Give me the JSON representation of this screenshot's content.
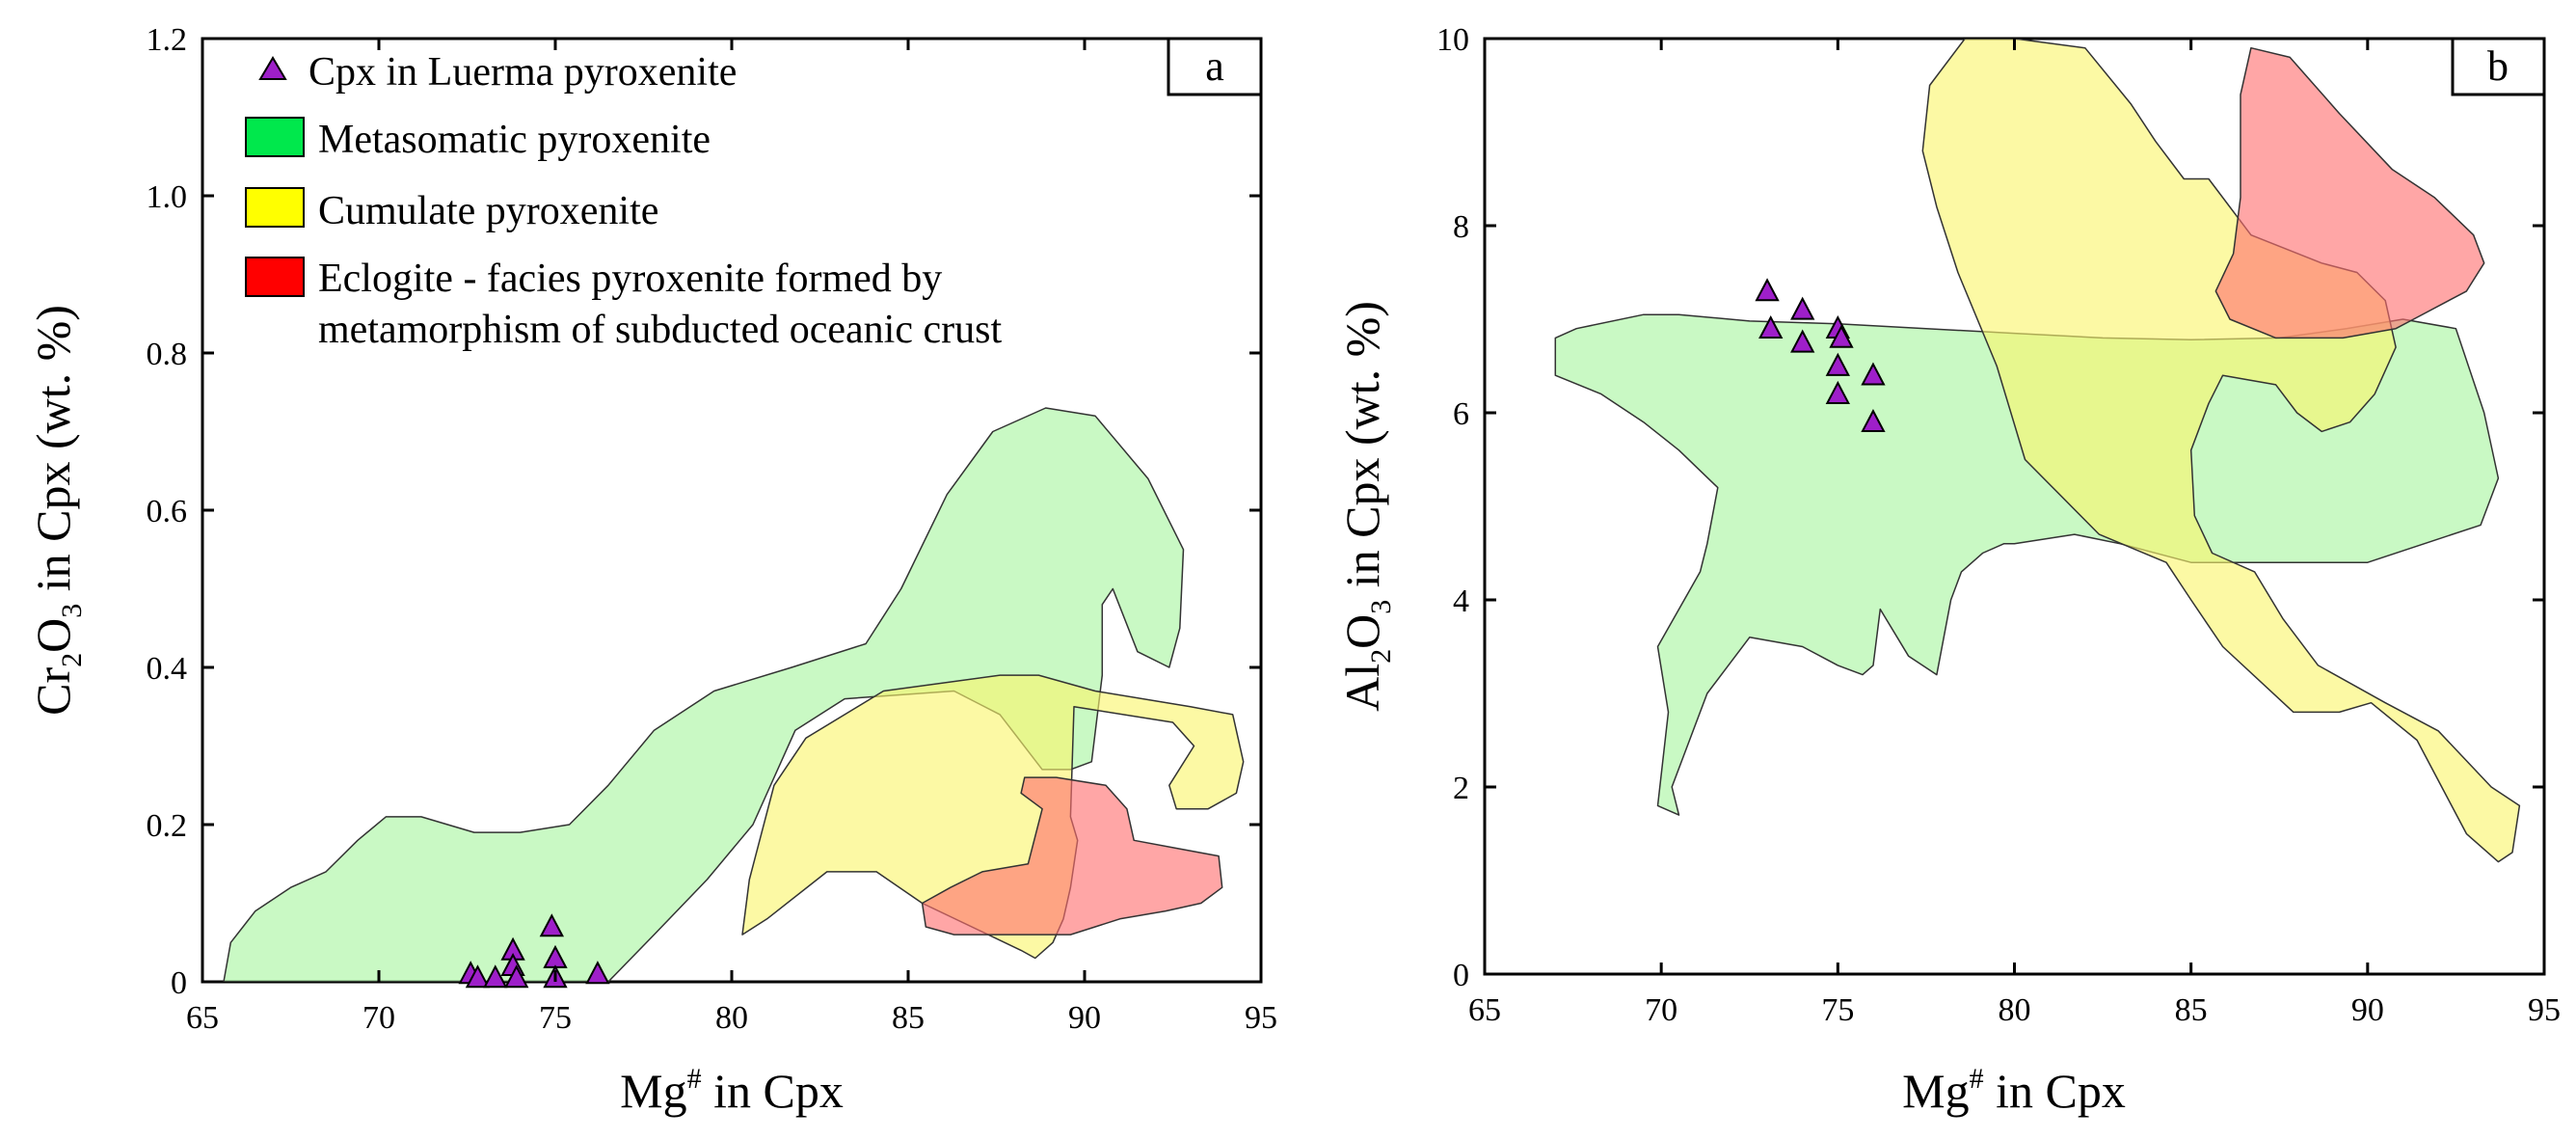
{
  "chart_data": [
    {
      "panel": "a",
      "type": "scatter",
      "xlabel": "Mg# in Cpx",
      "xlabel_parts": [
        "Mg",
        "#",
        " in Cpx"
      ],
      "ylabel": "Cr2O3 in Cpx (wt. %)",
      "ylabel_parts": [
        "Cr",
        "2",
        "O",
        "3",
        " in Cpx (wt. %)"
      ],
      "xlim": [
        65,
        95
      ],
      "ylim": [
        0,
        1.2
      ],
      "x_ticks": [
        65,
        70,
        75,
        80,
        85,
        90,
        95
      ],
      "y_ticks": [
        0,
        0.2,
        0.4,
        0.6,
        0.8,
        1.0,
        1.2
      ],
      "y_tick_labels": [
        "0",
        "0.2",
        "0.4",
        "0.6",
        "0.8",
        "1.0",
        "1.2"
      ],
      "legend_position": "top-left",
      "legend": [
        {
          "key": "cpx",
          "marker": "triangle",
          "lines": [
            "Cpx in Luerma pyroxenite"
          ]
        },
        {
          "key": "metasomatic",
          "marker": "box",
          "lines": [
            "Metasomatic pyroxenite"
          ]
        },
        {
          "key": "cumulate",
          "marker": "box",
          "lines": [
            "Cumulate pyroxenite"
          ]
        },
        {
          "key": "eclogite",
          "marker": "box",
          "lines": [
            "Eclogite - facies pyroxenite formed by",
            "metamorphism of subducted oceanic crust"
          ]
        }
      ],
      "fields": [
        {
          "name": "Metasomatic pyroxenite",
          "polygon": [
            [
              65.6,
              0
            ],
            [
              65.8,
              0.05
            ],
            [
              66.5,
              0.09
            ],
            [
              67.5,
              0.12
            ],
            [
              68.5,
              0.14
            ],
            [
              69.4,
              0.18
            ],
            [
              70.2,
              0.21
            ],
            [
              71.2,
              0.21
            ],
            [
              72.7,
              0.19
            ],
            [
              74,
              0.19
            ],
            [
              75.4,
              0.2
            ],
            [
              76.5,
              0.25
            ],
            [
              77.8,
              0.32
            ],
            [
              79.5,
              0.37
            ],
            [
              81.7,
              0.4
            ],
            [
              83.8,
              0.43
            ],
            [
              84.8,
              0.5
            ],
            [
              86.1,
              0.62
            ],
            [
              87.4,
              0.7
            ],
            [
              88.9,
              0.73
            ],
            [
              90.3,
              0.72
            ],
            [
              91.8,
              0.64
            ],
            [
              92.8,
              0.55
            ],
            [
              92.7,
              0.45
            ],
            [
              92.4,
              0.4
            ],
            [
              91.5,
              0.42
            ],
            [
              90.8,
              0.5
            ],
            [
              90.5,
              0.48
            ],
            [
              90.5,
              0.39
            ],
            [
              90.2,
              0.28
            ],
            [
              89.6,
              0.27
            ],
            [
              88.8,
              0.27
            ],
            [
              87.6,
              0.34
            ],
            [
              86.3,
              0.37
            ],
            [
              83.2,
              0.36
            ],
            [
              81.8,
              0.32
            ],
            [
              80.6,
              0.2
            ],
            [
              79.3,
              0.13
            ],
            [
              77.8,
              0.06
            ],
            [
              76.5,
              0
            ]
          ]
        },
        {
          "name": "Cumulate pyroxenite",
          "polygon": [
            [
              80.5,
              0.13
            ],
            [
              81.2,
              0.25
            ],
            [
              82.1,
              0.31
            ],
            [
              84.3,
              0.37
            ],
            [
              87.6,
              0.39
            ],
            [
              88.7,
              0.39
            ],
            [
              90.3,
              0.37
            ],
            [
              93,
              0.35
            ],
            [
              94.2,
              0.34
            ],
            [
              94.5,
              0.28
            ],
            [
              94.3,
              0.24
            ],
            [
              93.5,
              0.22
            ],
            [
              92.6,
              0.22
            ],
            [
              92.4,
              0.25
            ],
            [
              93.1,
              0.3
            ],
            [
              92.5,
              0.33
            ],
            [
              89.7,
              0.35
            ],
            [
              89.6,
              0.21
            ],
            [
              89.8,
              0.18
            ],
            [
              89.6,
              0.12
            ],
            [
              89.4,
              0.08
            ],
            [
              89.1,
              0.05
            ],
            [
              88.6,
              0.03
            ],
            [
              88.2,
              0.04
            ],
            [
              85.4,
              0.1
            ],
            [
              84.1,
              0.14
            ],
            [
              82.7,
              0.14
            ],
            [
              81,
              0.08
            ],
            [
              80.3,
              0.06
            ]
          ]
        },
        {
          "name": "Eclogite - facies pyroxenite formed by metamorphism of subducted oceanic crust",
          "polygon": [
            [
              85.4,
              0.1
            ],
            [
              86.2,
              0.12
            ],
            [
              87.1,
              0.14
            ],
            [
              88.4,
              0.15
            ],
            [
              88.8,
              0.22
            ],
            [
              88.2,
              0.24
            ],
            [
              88.3,
              0.26
            ],
            [
              89.2,
              0.26
            ],
            [
              90.6,
              0.25
            ],
            [
              91.2,
              0.22
            ],
            [
              91.4,
              0.18
            ],
            [
              92.6,
              0.17
            ],
            [
              93.8,
              0.16
            ],
            [
              93.9,
              0.12
            ],
            [
              93.3,
              0.1
            ],
            [
              92.3,
              0.09
            ],
            [
              91,
              0.08
            ],
            [
              90.3,
              0.07
            ],
            [
              89.6,
              0.06
            ],
            [
              88.7,
              0.06
            ],
            [
              87.2,
              0.06
            ],
            [
              86.3,
              0.06
            ],
            [
              85.5,
              0.07
            ]
          ]
        }
      ],
      "points": {
        "name": "Cpx in Luerma pyroxenite",
        "x": [
          72.6,
          72.8,
          73.3,
          73.8,
          73.8,
          73.9,
          74.9,
          75,
          75,
          76.2
        ],
        "y": [
          0.01,
          0.005,
          0.005,
          0.04,
          0.02,
          0.005,
          0.07,
          0.03,
          0.005,
          0.01
        ]
      }
    },
    {
      "panel": "b",
      "type": "scatter",
      "xlabel": "Mg# in Cpx",
      "xlabel_parts": [
        "Mg",
        "#",
        " in Cpx"
      ],
      "ylabel": "Al2O3 in Cpx (wt. %)",
      "ylabel_parts": [
        "Al",
        "2",
        "O",
        "3",
        " in Cpx (wt. %)"
      ],
      "xlim": [
        65,
        95
      ],
      "ylim": [
        0,
        10
      ],
      "x_ticks": [
        65,
        70,
        75,
        80,
        85,
        90,
        95
      ],
      "y_ticks": [
        0,
        2,
        4,
        6,
        8,
        10
      ],
      "y_tick_labels": [
        "0",
        "2",
        "4",
        "6",
        "8",
        "10"
      ],
      "fields": [
        {
          "name": "Metasomatic pyroxenite",
          "polygon": [
            [
              67,
              6.8
            ],
            [
              67.6,
              6.9
            ],
            [
              69.5,
              7.05
            ],
            [
              70.5,
              7.05
            ],
            [
              72.5,
              6.98
            ],
            [
              75,
              6.95
            ],
            [
              77.5,
              6.9
            ],
            [
              80,
              6.85
            ],
            [
              82.5,
              6.8
            ],
            [
              85,
              6.78
            ],
            [
              87.5,
              6.8
            ],
            [
              89.4,
              6.9
            ],
            [
              91,
              7
            ],
            [
              92.5,
              6.9
            ],
            [
              93.3,
              6
            ],
            [
              93.7,
              5.3
            ],
            [
              93.2,
              4.8
            ],
            [
              91.6,
              4.6
            ],
            [
              90,
              4.4
            ],
            [
              88.6,
              4.4
            ],
            [
              86.9,
              4.4
            ],
            [
              85,
              4.4
            ],
            [
              83,
              4.6
            ],
            [
              81.7,
              4.7
            ],
            [
              80,
              4.6
            ],
            [
              79.7,
              4.6
            ],
            [
              79.1,
              4.5
            ],
            [
              78.5,
              4.3
            ],
            [
              78.2,
              4
            ],
            [
              77.8,
              3.2
            ],
            [
              77,
              3.4
            ],
            [
              76.2,
              3.9
            ],
            [
              76,
              3.3
            ],
            [
              75.7,
              3.2
            ],
            [
              75,
              3.3
            ],
            [
              74,
              3.5
            ],
            [
              72.5,
              3.6
            ],
            [
              71.3,
              3
            ],
            [
              70.3,
              2
            ],
            [
              70.5,
              1.7
            ],
            [
              69.9,
              1.8
            ],
            [
              70.2,
              2.8
            ],
            [
              69.9,
              3.5
            ],
            [
              71.1,
              4.3
            ],
            [
              71.3,
              4.6
            ],
            [
              71.6,
              5.2
            ],
            [
              70.5,
              5.6
            ],
            [
              69.5,
              5.9
            ],
            [
              68.3,
              6.2
            ],
            [
              67,
              6.4
            ]
          ]
        },
        {
          "name": "Cumulate pyroxenite",
          "polygon": [
            [
              77.4,
              8.8
            ],
            [
              77.6,
              9.5
            ],
            [
              78.6,
              10
            ],
            [
              80,
              10
            ],
            [
              82,
              9.9
            ],
            [
              83.3,
              9.3
            ],
            [
              84,
              8.9
            ],
            [
              84.8,
              8.5
            ],
            [
              85.5,
              8.5
            ],
            [
              86.7,
              7.9
            ],
            [
              88.7,
              7.6
            ],
            [
              89.7,
              7.5
            ],
            [
              90.5,
              7.2
            ],
            [
              90.8,
              6.7
            ],
            [
              90.2,
              6.2
            ],
            [
              89.5,
              5.9
            ],
            [
              88.7,
              5.8
            ],
            [
              88,
              6
            ],
            [
              87.4,
              6.3
            ],
            [
              85.9,
              6.4
            ],
            [
              85.5,
              6.1
            ],
            [
              85,
              5.6
            ],
            [
              85.1,
              4.9
            ],
            [
              85.6,
              4.5
            ],
            [
              86.8,
              4.3
            ],
            [
              87.6,
              3.8
            ],
            [
              88.6,
              3.3
            ],
            [
              90.5,
              2.9
            ],
            [
              92,
              2.6
            ],
            [
              93.5,
              2
            ],
            [
              94.3,
              1.8
            ],
            [
              94.1,
              1.3
            ],
            [
              93.7,
              1.2
            ],
            [
              92.8,
              1.5
            ],
            [
              91.4,
              2.5
            ],
            [
              90.1,
              2.9
            ],
            [
              89.2,
              2.8
            ],
            [
              87.9,
              2.8
            ],
            [
              85.9,
              3.5
            ],
            [
              85,
              4
            ],
            [
              84.3,
              4.4
            ],
            [
              82.4,
              4.7
            ],
            [
              80.3,
              5.5
            ],
            [
              79.5,
              6.5
            ],
            [
              78.4,
              7.5
            ],
            [
              77.8,
              8.2
            ]
          ]
        },
        {
          "name": "Eclogite - facies pyroxenite formed by metamorphism of subducted oceanic crust",
          "polygon": [
            [
              86.4,
              9.4
            ],
            [
              86.7,
              9.9
            ],
            [
              87.8,
              9.8
            ],
            [
              89.2,
              9.2
            ],
            [
              90.7,
              8.6
            ],
            [
              91.9,
              8.3
            ],
            [
              93,
              7.9
            ],
            [
              93.3,
              7.6
            ],
            [
              92.8,
              7.3
            ],
            [
              91.3,
              7
            ],
            [
              90.8,
              6.9
            ],
            [
              89.3,
              6.8
            ],
            [
              87.4,
              6.8
            ],
            [
              86.1,
              7
            ],
            [
              85.7,
              7.3
            ],
            [
              86.2,
              7.7
            ],
            [
              86.4,
              8.3
            ],
            [
              86.4,
              8.9
            ]
          ]
        }
      ],
      "points": {
        "name": "Cpx in Luerma pyroxenite",
        "x": [
          73,
          73.1,
          74,
          74,
          75,
          75.1,
          75,
          76,
          75,
          76
        ],
        "y": [
          7.3,
          6.9,
          7.1,
          6.75,
          6.9,
          6.8,
          6.5,
          6.4,
          6.2,
          5.9
        ]
      }
    }
  ],
  "colors": {
    "metasomatic_fill": "#a8f5a0",
    "metasomatic_legend": "#00e84c",
    "cumulate_fill": "#faf56c",
    "cumulate_legend": "#ffff00",
    "eclogite_fill": "#ff7070",
    "eclogite_legend": "#ff0000",
    "marker_fill": "#9e1fc9",
    "axis": "#000000"
  },
  "panel_letters": [
    "a",
    "b"
  ]
}
